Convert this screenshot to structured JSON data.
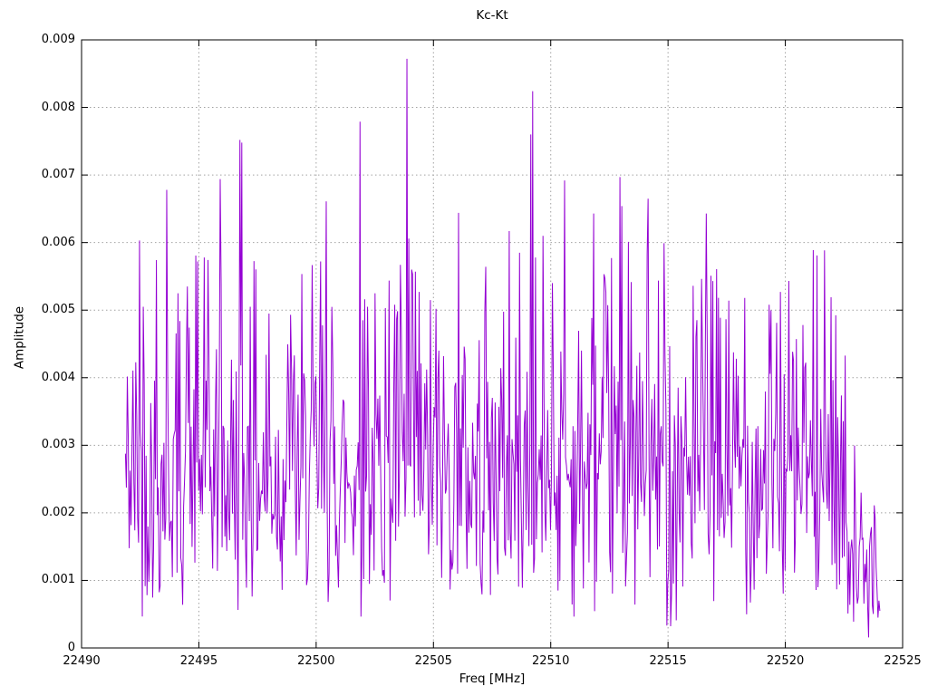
{
  "page": {
    "background": "#ffffff"
  },
  "chart_data": {
    "type": "line",
    "title": "Kc-Kt",
    "xlabel": "Freq [MHz]",
    "ylabel": "Amplitude",
    "xlim": [
      22490,
      22525
    ],
    "ylim": [
      0,
      0.009
    ],
    "xtick_values": [
      22490,
      22495,
      22500,
      22505,
      22510,
      22515,
      22520,
      22525
    ],
    "xtick_labels": [
      "22490",
      "22495",
      "22500",
      "22505",
      "22510",
      "22515",
      "22520",
      "22525"
    ],
    "ytick_values": [
      0,
      0.001,
      0.002,
      0.003,
      0.004,
      0.005,
      0.006,
      0.007,
      0.008,
      0.009
    ],
    "ytick_labels": [
      "0",
      "0.001",
      "0.002",
      "0.003",
      "0.004",
      "0.005",
      "0.006",
      "0.007",
      "0.008",
      "0.009"
    ],
    "grid": {
      "visible": true,
      "style": "dotted",
      "color": "#a2a2a2"
    },
    "border_color": "#000000",
    "tick_length": 7,
    "legend": "none",
    "series": [
      {
        "name": "Kc-Kt",
        "line_color": "#9400d3",
        "x_start": 22491.87,
        "x_end": 22524.06,
        "x_step": 0.04,
        "noise_model": {
          "seed": 42,
          "sigma": 0.0019,
          "floor": 0.0003,
          "soft_clamp": 0.0054,
          "soft_factor": 0.35,
          "tail_start": 22522.2,
          "tail_slope": 0.56,
          "tail_level": 0.38
        },
        "peaks": [
          [
            22492.45,
            0.00603
          ],
          [
            22492.62,
            0.00505
          ],
          [
            22493.2,
            0.00574
          ],
          [
            22493.64,
            0.00678
          ],
          [
            22494.1,
            0.00525
          ],
          [
            22494.52,
            0.00535
          ],
          [
            22494.95,
            0.00572
          ],
          [
            22495.23,
            0.00578
          ],
          [
            22495.9,
            0.00694
          ],
          [
            22496.76,
            0.00752
          ],
          [
            22496.84,
            0.00748
          ],
          [
            22497.2,
            0.00505
          ],
          [
            22498.0,
            0.00495
          ],
          [
            22498.9,
            0.00493
          ],
          [
            22500.2,
            0.00572
          ],
          [
            22500.42,
            0.00661
          ],
          [
            22501.86,
            0.00779
          ],
          [
            22502.05,
            0.00516
          ],
          [
            22502.2,
            0.00505
          ],
          [
            22502.94,
            0.00503
          ],
          [
            22503.35,
            0.00508
          ],
          [
            22503.6,
            0.00567
          ],
          [
            22503.87,
            0.00872
          ],
          [
            22503.95,
            0.00606
          ],
          [
            22504.06,
            0.0056
          ],
          [
            22504.22,
            0.00557
          ],
          [
            22504.4,
            0.00527
          ],
          [
            22505.1,
            0.00502
          ],
          [
            22506.07,
            0.00644
          ],
          [
            22507.2,
            0.00498
          ],
          [
            22508.24,
            0.00617
          ],
          [
            22508.66,
            0.00585
          ],
          [
            22509.15,
            0.0076
          ],
          [
            22509.23,
            0.00824
          ],
          [
            22509.66,
            0.0061
          ],
          [
            22510.05,
            0.0054
          ],
          [
            22510.59,
            0.00692
          ],
          [
            22511.83,
            0.00643
          ],
          [
            22512.6,
            0.00577
          ],
          [
            22512.95,
            0.00697
          ],
          [
            22513.04,
            0.00654
          ],
          [
            22513.3,
            0.00601
          ],
          [
            22514.16,
            0.00665
          ],
          [
            22514.85,
            0.00599
          ],
          [
            22516.05,
            0.00536
          ],
          [
            22516.64,
            0.00643
          ],
          [
            22517.6,
            0.00514
          ],
          [
            22518.28,
            0.00518
          ],
          [
            22519.3,
            0.00508
          ],
          [
            22519.8,
            0.00527
          ],
          [
            22520.75,
            0.00478
          ],
          [
            22521.34,
            0.00581
          ],
          [
            22521.96,
            0.00519
          ],
          [
            22523.79,
            0.00211
          ]
        ],
        "end_values": [
          0.00085,
          0.00045,
          0.0007,
          0.00055
        ]
      }
    ]
  }
}
